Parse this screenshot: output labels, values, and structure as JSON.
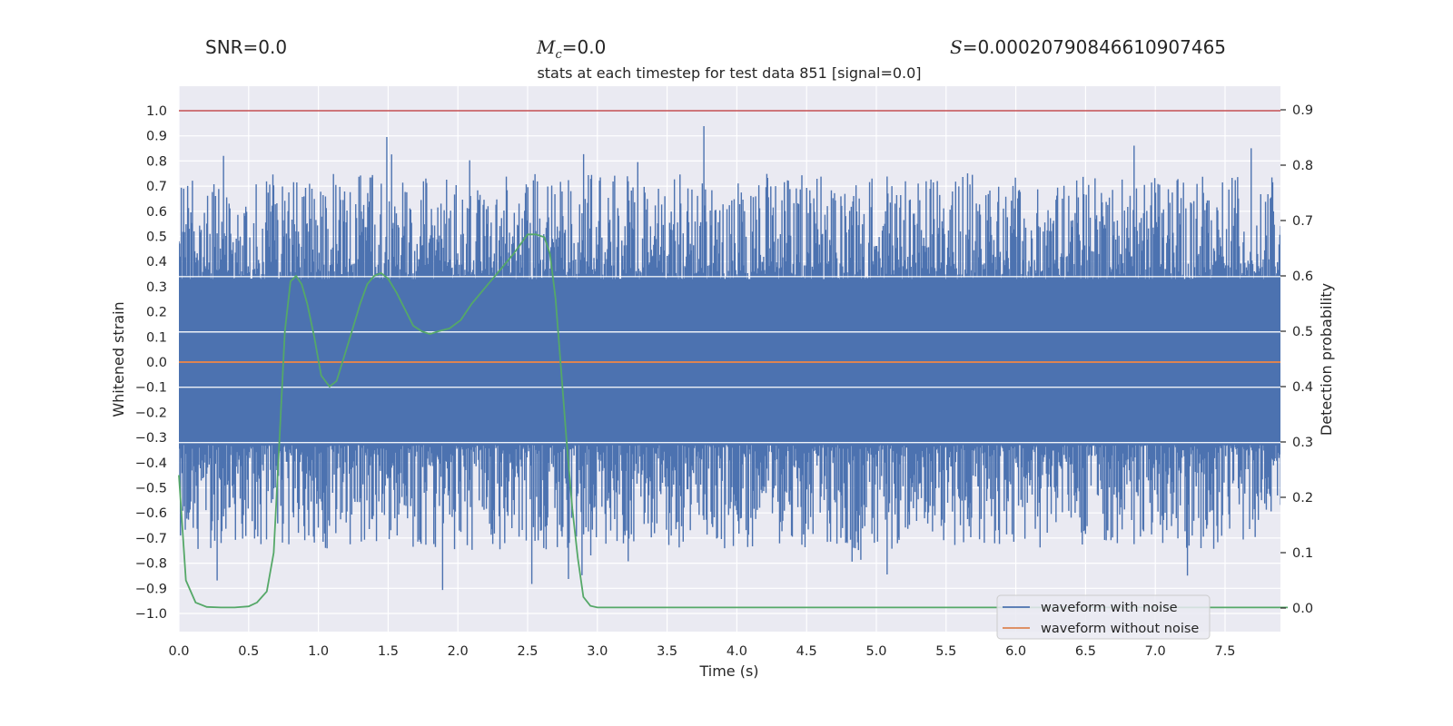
{
  "header": {
    "snr": "SNR=0.0",
    "mc_symbol": "M",
    "mc_subscript": "c",
    "mc_value": "=0.0",
    "s_symbol": "S",
    "s_value": "=0.00020790846610907465"
  },
  "chart_data": {
    "type": "line",
    "title": "stats at each timestep for test data 851 [signal=0.0]",
    "xlabel": "Time (s)",
    "ylabel": "Whitened strain",
    "y2label": "Detection probability",
    "xlim": [
      0.0,
      8.0
    ],
    "ylim": [
      -1.08,
      1.1
    ],
    "y2lim": [
      -0.04,
      0.94
    ],
    "xticks": [
      0.0,
      0.5,
      1.0,
      1.5,
      2.0,
      2.5,
      3.0,
      3.5,
      4.0,
      4.5,
      5.0,
      5.5,
      6.0,
      6.5,
      7.0,
      7.5
    ],
    "xtick_labels": [
      "0.0",
      "0.5",
      "1.0",
      "1.5",
      "2.0",
      "2.5",
      "3.0",
      "3.5",
      "4.0",
      "4.5",
      "5.0",
      "5.5",
      "6.0",
      "6.5",
      "7.0",
      "7.5"
    ],
    "yticks": [
      -1.0,
      -0.9,
      -0.8,
      -0.7,
      -0.6,
      -0.5,
      -0.4,
      -0.3,
      -0.2,
      -0.1,
      0.0,
      0.1,
      0.2,
      0.3,
      0.4,
      0.5,
      0.6,
      0.7,
      0.8,
      0.9,
      1.0
    ],
    "ytick_labels": [
      "−1.0",
      "−0.9",
      "−0.8",
      "−0.7",
      "−0.6",
      "−0.5",
      "−0.4",
      "−0.3",
      "−0.2",
      "−0.1",
      "0.0",
      "0.1",
      "0.2",
      "0.3",
      "0.4",
      "0.5",
      "0.6",
      "0.7",
      "0.8",
      "0.9",
      "1.0"
    ],
    "y2ticks": [
      0.0,
      0.1,
      0.2,
      0.3,
      0.4,
      0.5,
      0.6,
      0.7,
      0.8,
      0.9
    ],
    "y2tick_labels": [
      "0.0",
      "0.1",
      "0.2",
      "0.3",
      "0.4",
      "0.5",
      "0.6",
      "0.7",
      "0.8",
      "0.9"
    ],
    "threshold": 1.0,
    "legend_position": "lower-right",
    "series": [
      {
        "name": "waveform with noise",
        "color": "#4c72b0",
        "description": "dense whitened-strain noise, amplitude up to about ±1.0",
        "samples": 4096,
        "envelope_typical": 0.62,
        "band_core": 0.33
      },
      {
        "name": "waveform without noise",
        "color": "#dd8452",
        "y": 0.0
      },
      {
        "name": "detection probability",
        "color": "#55a868",
        "axis": "right",
        "x": [
          0.0,
          0.05,
          0.12,
          0.2,
          0.3,
          0.4,
          0.5,
          0.56,
          0.63,
          0.68,
          0.72,
          0.76,
          0.8,
          0.84,
          0.88,
          0.92,
          0.97,
          1.02,
          1.08,
          1.13,
          1.18,
          1.24,
          1.3,
          1.35,
          1.4,
          1.45,
          1.5,
          1.56,
          1.62,
          1.68,
          1.74,
          1.8,
          1.86,
          1.94,
          2.02,
          2.1,
          2.2,
          2.3,
          2.4,
          2.5,
          2.56,
          2.62,
          2.66,
          2.7,
          2.74,
          2.78,
          2.82,
          2.86,
          2.9,
          2.95,
          3.0,
          3.2,
          4.0,
          5.0,
          6.0,
          7.0,
          7.95
        ],
        "y": [
          0.24,
          0.05,
          0.01,
          0.002,
          0.001,
          0.001,
          0.003,
          0.01,
          0.03,
          0.1,
          0.3,
          0.5,
          0.59,
          0.6,
          0.585,
          0.55,
          0.49,
          0.42,
          0.4,
          0.41,
          0.45,
          0.5,
          0.55,
          0.585,
          0.6,
          0.605,
          0.595,
          0.57,
          0.54,
          0.51,
          0.5,
          0.495,
          0.5,
          0.505,
          0.52,
          0.55,
          0.58,
          0.61,
          0.64,
          0.675,
          0.675,
          0.67,
          0.64,
          0.56,
          0.43,
          0.3,
          0.18,
          0.09,
          0.02,
          0.004,
          0.001,
          0.001,
          0.001,
          0.001,
          0.001,
          0.001,
          0.001
        ]
      }
    ]
  }
}
